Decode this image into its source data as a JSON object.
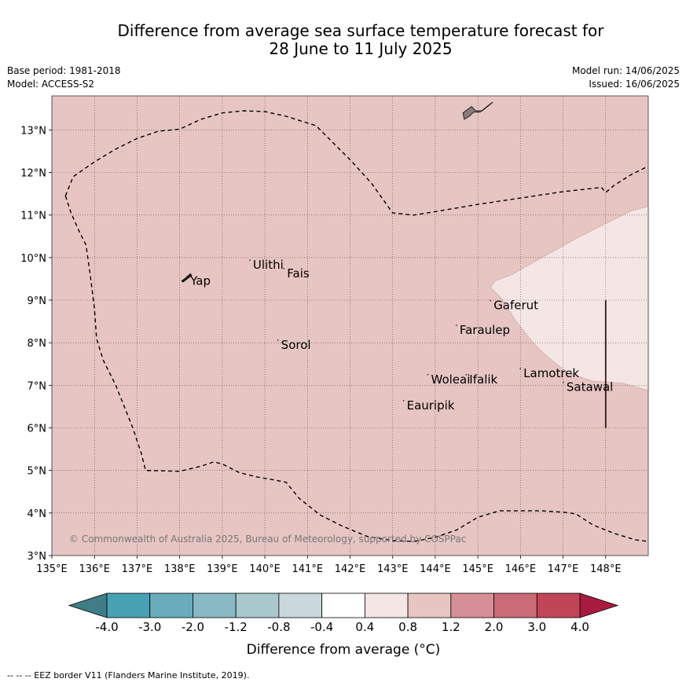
{
  "title": {
    "line1": "Difference from average sea surface temperature forecast for",
    "line2": "28 June to 11 July 2025"
  },
  "meta": {
    "base_period": "Base period: 1981-2018",
    "model": "Model: ACCESS-S2",
    "model_run": "Model run: 14/06/2025",
    "issued": "Issued: 16/06/2025"
  },
  "map": {
    "extent": {
      "lon": [
        135,
        149
      ],
      "lat": [
        3,
        13.8
      ]
    },
    "lat_ticks": [
      {
        "value": 3,
        "label": "3°N"
      },
      {
        "value": 4,
        "label": "4°N"
      },
      {
        "value": 5,
        "label": "5°N"
      },
      {
        "value": 6,
        "label": "6°N"
      },
      {
        "value": 7,
        "label": "7°N"
      },
      {
        "value": 8,
        "label": "8°N"
      },
      {
        "value": 9,
        "label": "9°N"
      },
      {
        "value": 10,
        "label": "10°N"
      },
      {
        "value": 11,
        "label": "11°N"
      },
      {
        "value": 12,
        "label": "12°N"
      },
      {
        "value": 13,
        "label": "13°N"
      }
    ],
    "lon_ticks": [
      {
        "value": 135,
        "label": "135°E"
      },
      {
        "value": 136,
        "label": "136°E"
      },
      {
        "value": 137,
        "label": "137°E"
      },
      {
        "value": 138,
        "label": "138°E"
      },
      {
        "value": 139,
        "label": "139°E"
      },
      {
        "value": 140,
        "label": "140°E"
      },
      {
        "value": 141,
        "label": "141°E"
      },
      {
        "value": 142,
        "label": "142°E"
      },
      {
        "value": 143,
        "label": "143°E"
      },
      {
        "value": 144,
        "label": "144°E"
      },
      {
        "value": 145,
        "label": "145°E"
      },
      {
        "value": 146,
        "label": "146°E"
      },
      {
        "value": 147,
        "label": "147°E"
      },
      {
        "value": 148,
        "label": "148°E"
      }
    ],
    "background_anomaly_color": "#e6c5c2",
    "places": [
      {
        "name": "Yap",
        "lon": 138.25,
        "lat": 9.45
      },
      {
        "name": "Ulithi",
        "lon": 139.72,
        "lat": 9.83
      },
      {
        "name": "Fais",
        "lon": 140.52,
        "lat": 9.63
      },
      {
        "name": "Gaferut",
        "lon": 145.37,
        "lat": 8.88
      },
      {
        "name": "Faraulep",
        "lon": 144.57,
        "lat": 8.3
      },
      {
        "name": "Sorol",
        "lon": 140.38,
        "lat": 7.95
      },
      {
        "name": "Lamotrek",
        "lon": 146.07,
        "lat": 7.28
      },
      {
        "name": "Woleai",
        "lon": 143.9,
        "lat": 7.14
      },
      {
        "name": "Ifalik",
        "lon": 144.8,
        "lat": 7.14
      },
      {
        "name": "Satawal",
        "lon": 147.08,
        "lat": 6.96
      },
      {
        "name": "Eauripik",
        "lon": 143.33,
        "lat": 6.53
      }
    ],
    "anomaly_patch": {
      "range_label": "0.4 to 0.8",
      "color": "#f3e6e5",
      "outline": [
        [
          149,
          11.2
        ],
        [
          148.6,
          11.1
        ],
        [
          147.4,
          10.5
        ],
        [
          146.5,
          10
        ],
        [
          145.8,
          9.6
        ],
        [
          145.4,
          9.45
        ],
        [
          145.3,
          9.3
        ],
        [
          145.55,
          9.05
        ],
        [
          145.9,
          8.5
        ],
        [
          146.3,
          8
        ],
        [
          146.6,
          7.7
        ],
        [
          147.1,
          7.3
        ],
        [
          147.7,
          7.1
        ],
        [
          148.4,
          7.05
        ],
        [
          149,
          6.88
        ]
      ]
    },
    "eez_border": [
      [
        135.32,
        11.45
      ],
      [
        135.5,
        11.9
      ],
      [
        136,
        12.25
      ],
      [
        136.5,
        12.55
      ],
      [
        137,
        12.8
      ],
      [
        137.5,
        12.97
      ],
      [
        138,
        13.02
      ],
      [
        138.5,
        13.25
      ],
      [
        139,
        13.4
      ],
      [
        139.5,
        13.45
      ],
      [
        140,
        13.43
      ],
      [
        140.5,
        13.32
      ],
      [
        141.2,
        13.1
      ],
      [
        141.6,
        12.7
      ],
      [
        142,
        12.3
      ],
      [
        142.5,
        11.75
      ],
      [
        143,
        11.05
      ],
      [
        143.5,
        11
      ],
      [
        144,
        11.08
      ],
      [
        145,
        11.25
      ],
      [
        146,
        11.4
      ],
      [
        147,
        11.55
      ],
      [
        147.9,
        11.65
      ],
      [
        148,
        11.53
      ],
      [
        148.2,
        11.7
      ],
      [
        148.6,
        11.95
      ],
      [
        149,
        12.15
      ]
    ],
    "eez_border_west": [
      [
        135.32,
        11.45
      ],
      [
        135.45,
        11.05
      ],
      [
        135.65,
        10.6
      ],
      [
        135.8,
        10.3
      ],
      [
        135.9,
        9.6
      ],
      [
        136,
        8.8
      ],
      [
        136.05,
        8.1
      ],
      [
        136.2,
        7.6
      ],
      [
        136.5,
        7
      ],
      [
        136.9,
        6
      ],
      [
        137.1,
        5.4
      ],
      [
        137.2,
        5
      ],
      [
        138,
        4.98
      ],
      [
        138.5,
        5.1
      ],
      [
        138.8,
        5.2
      ],
      [
        139,
        5.15
      ],
      [
        139.4,
        4.95
      ],
      [
        139.8,
        4.85
      ],
      [
        140.2,
        4.78
      ],
      [
        140.5,
        4.72
      ],
      [
        140.8,
        4.35
      ],
      [
        141.3,
        3.95
      ],
      [
        141.8,
        3.7
      ],
      [
        142.4,
        3.45
      ],
      [
        143,
        3.35
      ],
      [
        143.5,
        3.33
      ],
      [
        144,
        3.43
      ],
      [
        144.5,
        3.6
      ],
      [
        145,
        3.9
      ],
      [
        145.5,
        4.05
      ],
      [
        146,
        4.05
      ],
      [
        146.5,
        4.05
      ],
      [
        147,
        4.02
      ],
      [
        147.3,
        3.98
      ],
      [
        147.7,
        3.72
      ],
      [
        148.2,
        3.52
      ],
      [
        148.7,
        3.37
      ],
      [
        149,
        3.33
      ]
    ],
    "satawal_line": [
      [
        148,
        9
      ],
      [
        148,
        6
      ]
    ],
    "guam_outline": [
      [
        145.35,
        13.65
      ],
      [
        145.23,
        13.55
      ],
      [
        145.1,
        13.45
      ],
      [
        144.95,
        13.45
      ],
      [
        144.85,
        13.55
      ],
      [
        144.65,
        13.4
      ],
      [
        144.68,
        13.25
      ],
      [
        144.8,
        13.32
      ],
      [
        144.9,
        13.42
      ],
      [
        145.05,
        13.42
      ],
      [
        145.15,
        13.5
      ],
      [
        145.3,
        13.62
      ]
    ],
    "yap_outline": [
      [
        138.25,
        9.62
      ],
      [
        138.18,
        9.55
      ],
      [
        138.05,
        9.45
      ],
      [
        138.08,
        9.43
      ],
      [
        138.2,
        9.52
      ],
      [
        138.28,
        9.58
      ]
    ],
    "copyright": "© Commonwealth of Australia 2025, Bureau of Meteorology, supported by COSPPac"
  },
  "colorbar": {
    "label": "Difference from average (°C)",
    "segments": [
      {
        "from": -4.0,
        "to": -3.0,
        "color": "#46a1b3"
      },
      {
        "from": -3.0,
        "to": -2.0,
        "color": "#69adbc"
      },
      {
        "from": -2.0,
        "to": -1.2,
        "color": "#88b9c4"
      },
      {
        "from": -1.2,
        "to": -0.8,
        "color": "#a8c8ce"
      },
      {
        "from": -0.8,
        "to": -0.4,
        "color": "#c8d8dc"
      },
      {
        "from": -0.4,
        "to": 0.4,
        "color": "#ffffff"
      },
      {
        "from": 0.4,
        "to": 0.8,
        "color": "#f3e6e5"
      },
      {
        "from": 0.8,
        "to": 1.2,
        "color": "#e6c5c2"
      },
      {
        "from": 1.2,
        "to": 2.0,
        "color": "#d68f96"
      },
      {
        "from": 2.0,
        "to": 3.0,
        "color": "#cb6b77"
      },
      {
        "from": 3.0,
        "to": 4.0,
        "color": "#c04556"
      }
    ],
    "under_color": "#3f7e86",
    "over_color": "#a81b3f",
    "tick_labels": [
      "-4.0",
      "-3.0",
      "-2.0",
      "-1.2",
      "-0.8",
      "-0.4",
      "0.4",
      "0.8",
      "1.2",
      "2.0",
      "3.0",
      "4.0"
    ]
  },
  "footer": "--  --  -- EEZ border V11 (Flanders Marine Institute, 2019)."
}
